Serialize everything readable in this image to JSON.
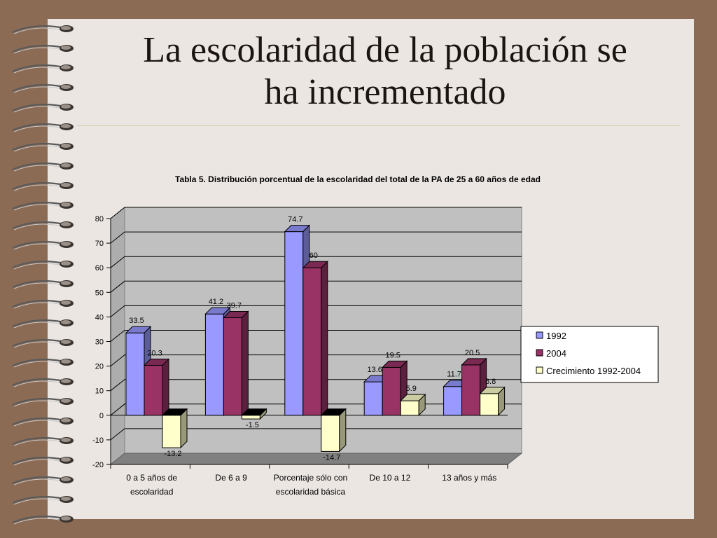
{
  "slide": {
    "title_line1": "La escolaridad de la población se",
    "title_line2": "ha incrementado"
  },
  "chart_data": {
    "type": "bar",
    "title": "Tabla 5. Distribución porcentual de la escolaridad del total de la PA de 25 a 60 años de edad",
    "categories": [
      [
        "0 a 5 años de",
        "escolaridad"
      ],
      [
        "De 6 a 9"
      ],
      [
        "Porcentaje sólo con",
        "escolaridad básica"
      ],
      [
        "De 10 a 12"
      ],
      [
        "13 años y más"
      ]
    ],
    "series": [
      {
        "name": "1992",
        "values": [
          33.5,
          41.2,
          74.7,
          13.6,
          11.7
        ],
        "color": "#9999ff"
      },
      {
        "name": "2004",
        "values": [
          20.3,
          39.7,
          60,
          19.5,
          20.5
        ],
        "color": "#993366"
      },
      {
        "name": "Crecimiento 1992-2004",
        "values": [
          -13.2,
          -1.5,
          -14.7,
          5.9,
          8.8
        ],
        "color": "#ffffcc"
      }
    ],
    "ylim": [
      -20,
      80
    ],
    "yticks": [
      -20,
      -10,
      0,
      10,
      20,
      30,
      40,
      50,
      60,
      70,
      80
    ],
    "grid": true,
    "legend": "right",
    "wall_color": "#c0c0c0",
    "floor_color": "#808080"
  }
}
